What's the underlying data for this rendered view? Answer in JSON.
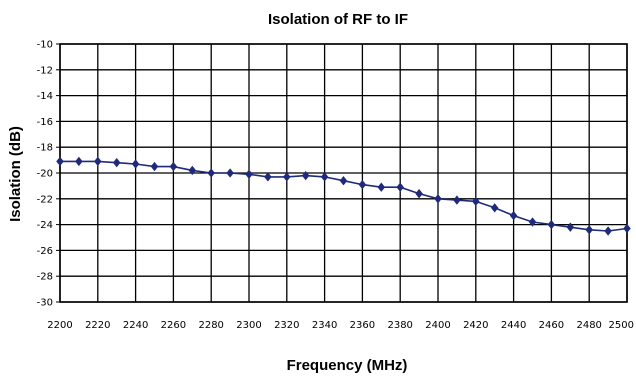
{
  "chart_data": {
    "type": "line",
    "title": "Isolation of RF to IF",
    "xlabel": "Frequency (MHz)",
    "ylabel": "Isolation (dB)",
    "xlim": [
      2200,
      2500
    ],
    "ylim": [
      -30,
      -10
    ],
    "grid": true,
    "x_ticks": [
      2200,
      2220,
      2240,
      2260,
      2280,
      2300,
      2320,
      2340,
      2360,
      2380,
      2400,
      2420,
      2440,
      2460,
      2480,
      2500
    ],
    "y_ticks": [
      -10,
      -12,
      -14,
      -16,
      -18,
      -20,
      -22,
      -24,
      -26,
      -28,
      -30
    ],
    "colors": {
      "series": "#1f2a7a",
      "grid": "#000000"
    },
    "series": [
      {
        "x": [
          2200,
          2210,
          2220,
          2230,
          2240,
          2250,
          2260,
          2270,
          2280,
          2290,
          2300,
          2310,
          2320,
          2330,
          2340,
          2350,
          2360,
          2370,
          2380,
          2390,
          2400,
          2410,
          2420,
          2430,
          2440,
          2450,
          2460,
          2470,
          2480,
          2490,
          2500
        ],
        "y": [
          -19.1,
          -19.1,
          -19.1,
          -19.2,
          -19.3,
          -19.5,
          -19.5,
          -19.8,
          -20.0,
          -20.0,
          -20.1,
          -20.3,
          -20.3,
          -20.2,
          -20.3,
          -20.6,
          -20.9,
          -21.1,
          -21.1,
          -21.6,
          -22.0,
          -22.1,
          -22.2,
          -22.7,
          -23.3,
          -23.8,
          -24.0,
          -24.2,
          -24.4,
          -24.5,
          -24.3
        ]
      }
    ]
  }
}
